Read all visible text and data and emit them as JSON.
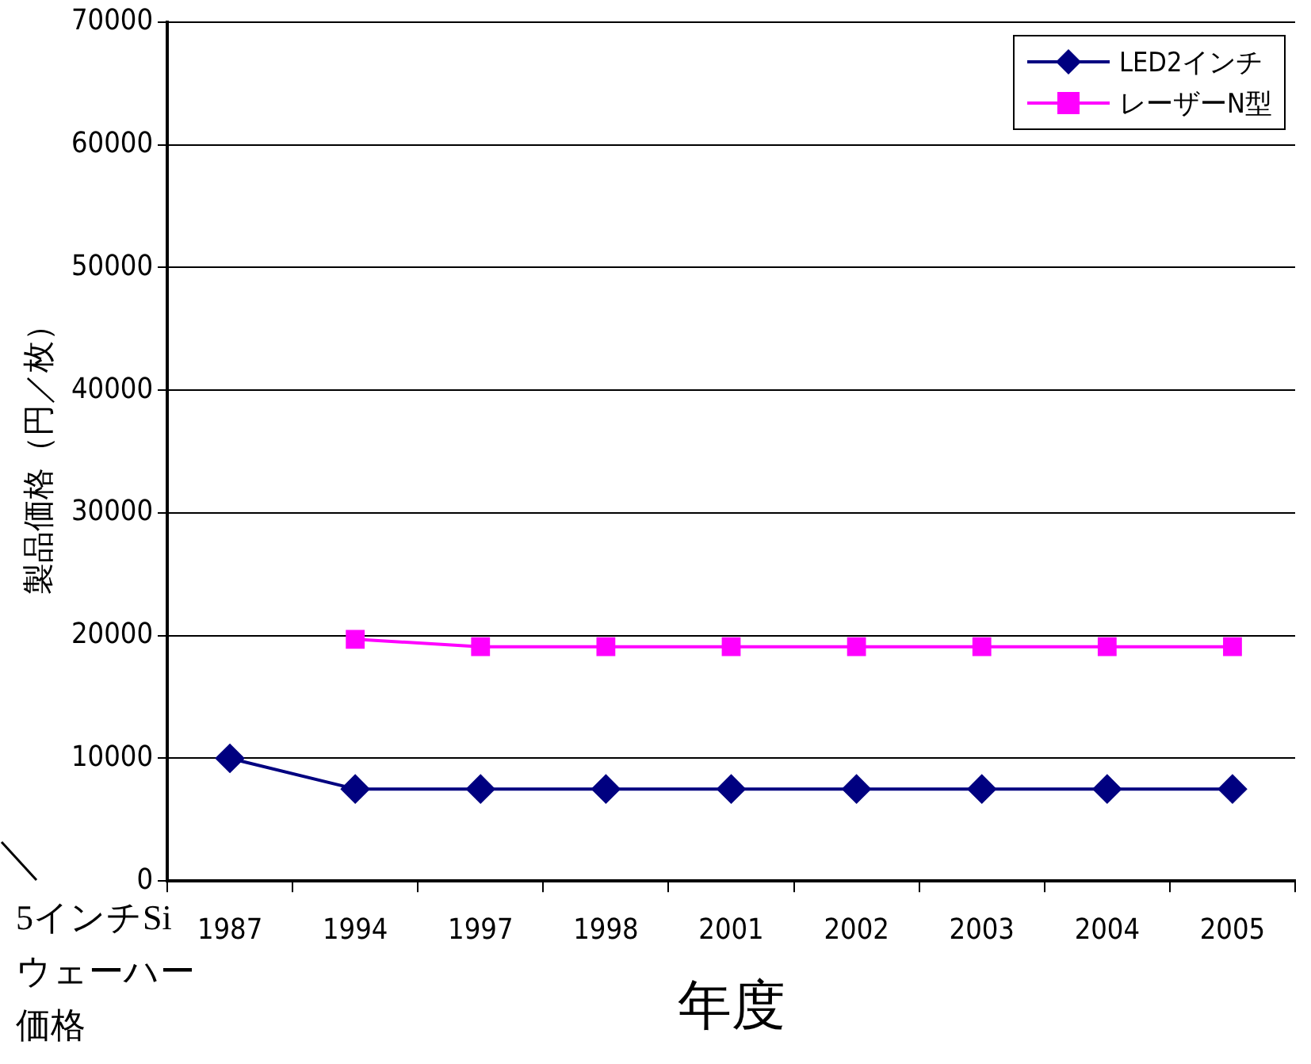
{
  "chart_data": {
    "type": "line",
    "xlabel": "年度",
    "ylabel": "製品価格（円／枚）",
    "categories": [
      "1987",
      "1994",
      "1997",
      "1998",
      "2001",
      "2002",
      "2003",
      "2004",
      "2005"
    ],
    "series": [
      {
        "name": "LED2インチ",
        "color": "#000080",
        "marker": "diamond",
        "values": [
          10000,
          7500,
          7500,
          7500,
          7500,
          7500,
          7500,
          7500,
          7500
        ]
      },
      {
        "name": "レーザーN型",
        "color": "#ff00ff",
        "marker": "square",
        "values": [
          null,
          19700,
          19100,
          19100,
          19100,
          19100,
          19100,
          19100,
          19100
        ]
      }
    ],
    "ylim": [
      0,
      70000
    ],
    "yticks": [
      0,
      10000,
      20000,
      30000,
      40000,
      50000,
      60000,
      70000
    ],
    "grid": "y",
    "legend": "top right",
    "annotations": [
      "5インチSi",
      "ウェーハー",
      "価格"
    ]
  }
}
